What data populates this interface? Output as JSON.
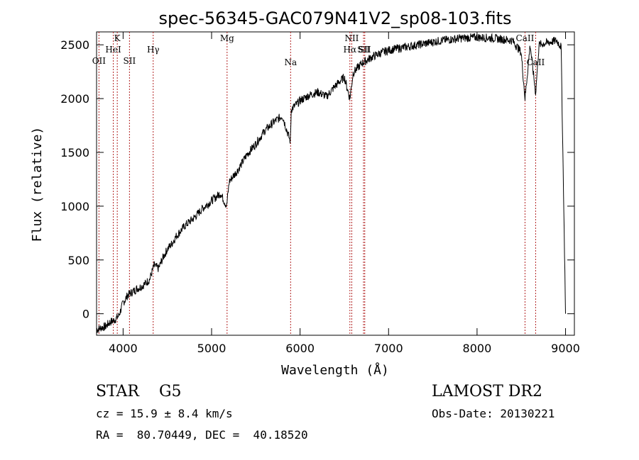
{
  "chart_data": {
    "type": "line",
    "title": "spec-56345-GAC079N41V2_sp08-103.fits",
    "xlabel": "Wavelength (Å)",
    "ylabel": "Flux (relative)",
    "xlim": [
      3700,
      9100
    ],
    "ylim": [
      -200,
      2620
    ],
    "xticks": [
      4000,
      5000,
      6000,
      7000,
      8000,
      9000
    ],
    "yticks": [
      0,
      500,
      1000,
      1500,
      2000,
      2500
    ],
    "grid": false,
    "series": [
      {
        "x": [
          3700,
          3750,
          3800,
          3850,
          3900,
          3950,
          4000,
          4050,
          4100,
          4150,
          4200,
          4250,
          4300,
          4350,
          4400,
          4450,
          4500,
          4550,
          4600,
          4700,
          4800,
          4900,
          5000,
          5100,
          5170,
          5200,
          5300,
          5400,
          5500,
          5600,
          5700,
          5800,
          5890,
          5900,
          6000,
          6100,
          6200,
          6300,
          6400,
          6500,
          6563,
          6600,
          6700,
          6800,
          6900,
          7000,
          7200,
          7400,
          7600,
          7800,
          8000,
          8200,
          8400,
          8498,
          8542,
          8600,
          8662,
          8700,
          8800,
          8900,
          8950,
          9000
        ],
        "y": [
          -150,
          -130,
          -120,
          -80,
          -60,
          -20,
          100,
          170,
          200,
          230,
          250,
          280,
          320,
          450,
          420,
          520,
          600,
          650,
          720,
          820,
          890,
          980,
          1050,
          1120,
          1000,
          1230,
          1340,
          1480,
          1580,
          1700,
          1780,
          1840,
          1600,
          1900,
          1980,
          2030,
          2060,
          2020,
          2120,
          2200,
          2000,
          2240,
          2330,
          2380,
          2420,
          2450,
          2480,
          2510,
          2540,
          2560,
          2570,
          2560,
          2540,
          2430,
          2000,
          2500,
          2050,
          2500,
          2520,
          2540,
          2480,
          0
        ]
      }
    ],
    "lines": [
      {
        "name": "OII",
        "x": 3727
      },
      {
        "name": "K",
        "x": 3934
      },
      {
        "name": "HeI",
        "x": 3889
      },
      {
        "name": "SII",
        "x": 4072
      },
      {
        "name": "Hγ",
        "x": 4340
      },
      {
        "name": "Mg",
        "x": 5175
      },
      {
        "name": "Na",
        "x": 5893
      },
      {
        "name": "NII",
        "x": 6584
      },
      {
        "name": "Hα",
        "x": 6563
      },
      {
        "name": "SII",
        "x": 6717
      },
      {
        "name": "SII",
        "x": 6731
      },
      {
        "name": "CaII",
        "x": 8542
      },
      {
        "name": "CaII",
        "x": 8662
      }
    ]
  },
  "info": {
    "class_line": "STAR    G5",
    "cz_line": "cz = 15.9 ± 8.4 km/s",
    "radec_line": "RA =  80.70449, DEC =  40.18520",
    "survey": "LAMOST DR2",
    "obs_date": "Obs-Date: 20130221"
  }
}
